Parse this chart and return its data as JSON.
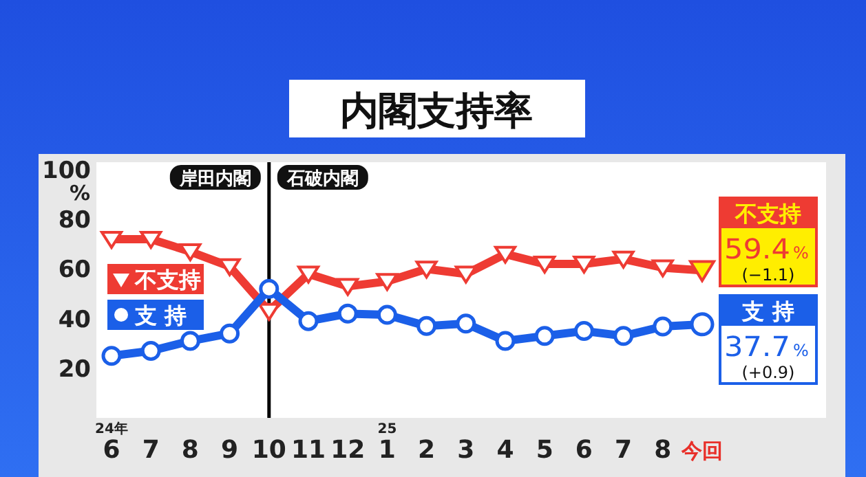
{
  "chart_data": {
    "type": "line",
    "title": "内閣支持率",
    "ylabel": "%",
    "categories": [
      "6",
      "7",
      "8",
      "9",
      "10",
      "11",
      "12",
      "1",
      "2",
      "3",
      "4",
      "5",
      "6",
      "7",
      "8",
      "今回"
    ],
    "series": [
      {
        "name": "不支持",
        "color": "#ee3b33",
        "marker": "triangle",
        "values": [
          72,
          72,
          67,
          61,
          43,
          58,
          53,
          55,
          60,
          58,
          66,
          62,
          62,
          64,
          60.5,
          59.4
        ],
        "value_labels": [
          null,
          null,
          null,
          null,
          null,
          null,
          null,
          null,
          null,
          null,
          null,
          null,
          null,
          null,
          null,
          "59.4%"
        ]
      },
      {
        "name": "支 持",
        "color": "#1b5fe8",
        "marker": "circle",
        "values": [
          25,
          27,
          31,
          34,
          52,
          39,
          42,
          41.5,
          37,
          38,
          31,
          33,
          35,
          33,
          36.8,
          37.7
        ],
        "value_labels": [
          null,
          null,
          null,
          null,
          null,
          null,
          null,
          null,
          null,
          null,
          null,
          null,
          null,
          null,
          null,
          "37.7%"
        ]
      }
    ],
    "ylim": [
      0,
      103
    ],
    "yticks": [
      20,
      40,
      60,
      80,
      100
    ],
    "ref_lines": [
      {
        "axis": "x",
        "value": "10",
        "color": "#000000"
      }
    ],
    "annotations": [
      "岸田内閣",
      "石破内閣",
      "24年",
      "25",
      "(−1.1)",
      "(+0.9)"
    ],
    "legend": "left",
    "grid": false,
    "line_style": "solid"
  }
}
